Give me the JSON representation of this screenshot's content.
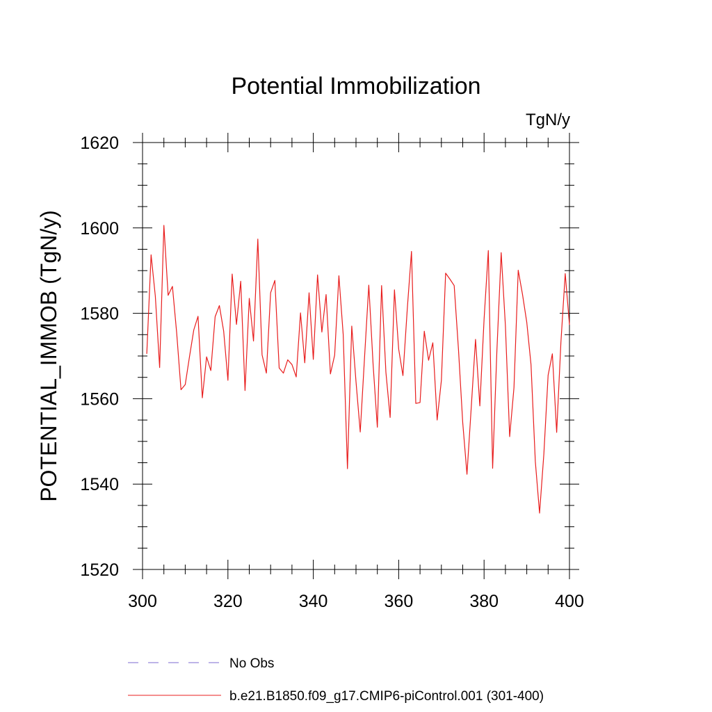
{
  "chart_data": {
    "type": "line",
    "title": "Potential Immobilization",
    "units_label": "TgN/y",
    "xlabel": "",
    "ylabel": "POTENTIAL_IMMOB  (TgN/y)",
    "xlim": [
      300,
      400
    ],
    "ylim": [
      1520,
      1620
    ],
    "x_ticks": [
      300,
      320,
      340,
      360,
      380,
      400
    ],
    "y_ticks": [
      1520,
      1540,
      1560,
      1580,
      1600,
      1620
    ],
    "x_minor_step": 5,
    "y_minor_step": 5,
    "grid": false,
    "legend_position": "bottom",
    "series": [
      {
        "name": "No Obs",
        "color": "#7b68d0",
        "style": "dashed",
        "x": [],
        "y": []
      },
      {
        "name": "b.e21.B1850.f09_g17.CMIP6-piControl.001 (301-400)",
        "color": "#e81c1c",
        "style": "solid",
        "x": [
          301,
          302,
          303,
          304,
          305,
          306,
          307,
          308,
          309,
          310,
          311,
          312,
          313,
          314,
          315,
          316,
          317,
          318,
          319,
          320,
          321,
          322,
          323,
          324,
          325,
          326,
          327,
          328,
          329,
          330,
          331,
          332,
          333,
          334,
          335,
          336,
          337,
          338,
          339,
          340,
          341,
          342,
          343,
          344,
          345,
          346,
          347,
          348,
          349,
          350,
          351,
          352,
          353,
          354,
          355,
          356,
          357,
          358,
          359,
          360,
          361,
          362,
          363,
          364,
          365,
          366,
          367,
          368,
          369,
          370,
          371,
          372,
          373,
          374,
          375,
          376,
          377,
          378,
          379,
          380,
          381,
          382,
          383,
          384,
          385,
          386,
          387,
          388,
          389,
          390,
          391,
          392,
          393,
          394,
          395,
          396,
          397,
          398,
          399,
          400
        ],
        "y": [
          1570.5,
          1593.7,
          1584.0,
          1567.3,
          1600.6,
          1584.2,
          1586.3,
          1575.4,
          1562.1,
          1563.3,
          1569.8,
          1576.1,
          1579.3,
          1560.2,
          1569.8,
          1566.6,
          1579.2,
          1581.8,
          1575.8,
          1564.3,
          1589.2,
          1577.4,
          1587.5,
          1561.9,
          1583.5,
          1573.5,
          1597.4,
          1570.3,
          1566.0,
          1584.8,
          1587.7,
          1567.2,
          1566.0,
          1569.1,
          1568.0,
          1565.1,
          1580.1,
          1568.4,
          1584.8,
          1569.2,
          1589.0,
          1575.6,
          1584.4,
          1565.8,
          1570.2,
          1588.8,
          1575.0,
          1543.6,
          1577.0,
          1564.0,
          1552.2,
          1569.7,
          1586.6,
          1568.0,
          1553.3,
          1586.5,
          1566.2,
          1555.6,
          1585.5,
          1571.6,
          1565.4,
          1580.9,
          1594.5,
          1558.9,
          1559.1,
          1575.8,
          1569.0,
          1573.1,
          1555.0,
          1564.3,
          1589.4,
          1588.0,
          1586.5,
          1571.5,
          1554.4,
          1542.3,
          1558.1,
          1573.9,
          1558.3,
          1578.6,
          1594.7,
          1543.7,
          1571.1,
          1594.2,
          1577.0,
          1551.1,
          1562.6,
          1590.1,
          1584.4,
          1577.9,
          1568.0,
          1545.3,
          1533.2,
          1547.1,
          1565.5,
          1570.5,
          1552.1,
          1573.2,
          1589.3,
          1577.3
        ]
      }
    ]
  }
}
